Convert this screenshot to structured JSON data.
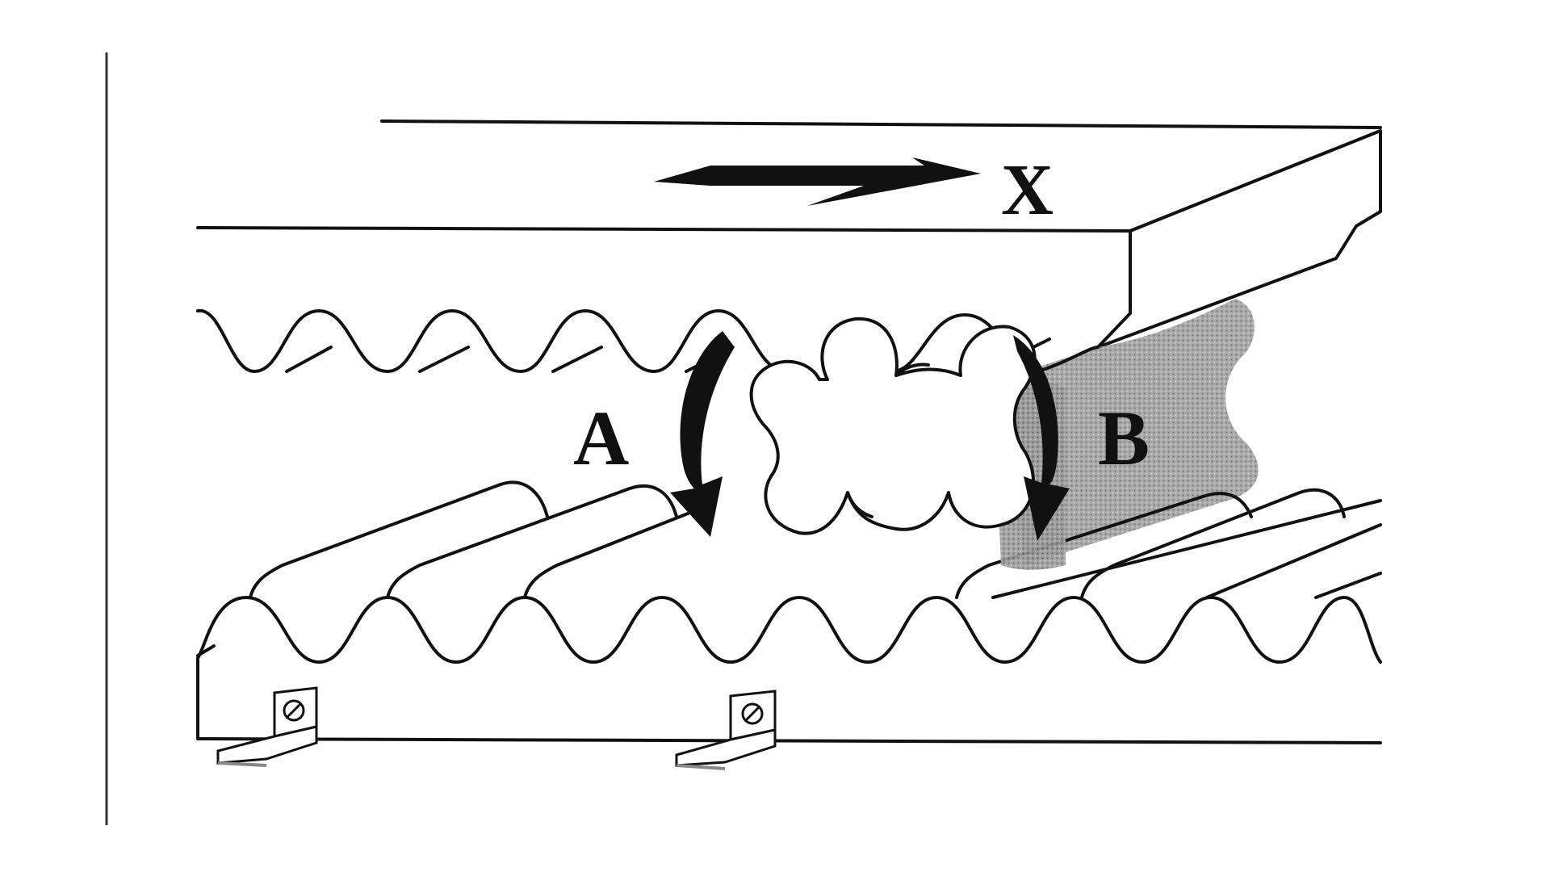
{
  "labels": {
    "direction": "X",
    "rotation_a": "A",
    "rotation_b": "B"
  },
  "colors": {
    "ink": "#111111",
    "paper": "#ffffff",
    "shadow": "#8c8c8c"
  },
  "icons": [
    "arrow-right-icon",
    "curved-arrow-a-icon",
    "curved-arrow-b-icon",
    "mounting-bracket-icon",
    "screw-icon"
  ]
}
